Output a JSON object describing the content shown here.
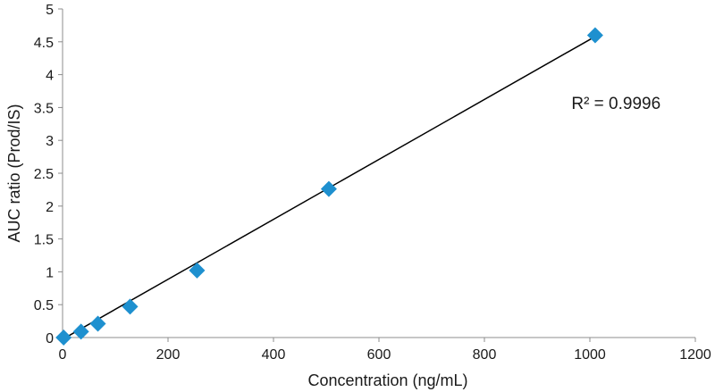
{
  "chart_data": {
    "type": "scatter",
    "title": "",
    "xlabel": "Concentration (ng/mL)",
    "ylabel": "AUC ratio (Prod/IS)",
    "xlim": [
      0,
      1200
    ],
    "ylim": [
      0,
      5
    ],
    "x_ticks": [
      "0",
      "200",
      "400",
      "600",
      "800",
      "1000",
      "1200"
    ],
    "y_ticks": [
      "0",
      "0.5",
      "1",
      "1.5",
      "2",
      "2.5",
      "3",
      "3.5",
      "4",
      "4.5",
      "5"
    ],
    "grid": false,
    "legend": "none",
    "series": [
      {
        "marker": "diamond",
        "color": "#1e90cf",
        "x": [
          2,
          35,
          67,
          128,
          255,
          505,
          1010
        ],
        "y": [
          0.0,
          0.09,
          0.21,
          0.47,
          1.02,
          2.26,
          4.6
        ]
      }
    ],
    "trendline": {
      "type": "linear",
      "color": "#000000",
      "x": [
        0,
        1010
      ],
      "y": [
        -0.0266,
        4.58
      ]
    },
    "annotations": [
      "R² = 0.9996"
    ]
  }
}
